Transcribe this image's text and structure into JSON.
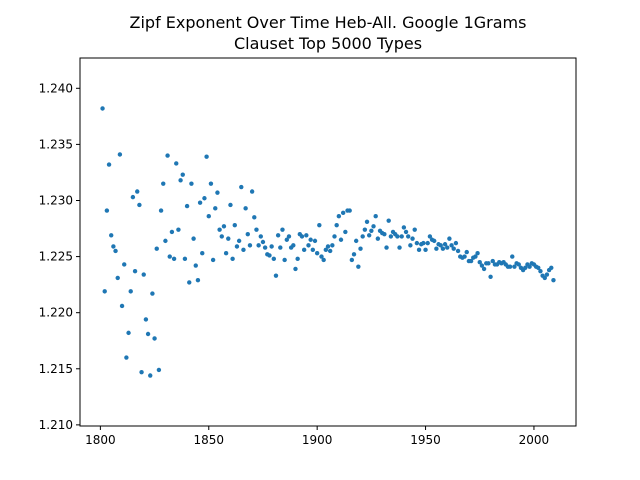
{
  "chart_data": {
    "type": "scatter",
    "title": "Zipf Exponent Over Time Heb-All. Google 1Grams",
    "subtitle": "Clauset Top 5000 Types",
    "x": [
      1801,
      1802,
      1803,
      1804,
      1805,
      1806,
      1807,
      1808,
      1809,
      1810,
      1811,
      1812,
      1813,
      1814,
      1815,
      1816,
      1817,
      1818,
      1819,
      1820,
      1821,
      1822,
      1823,
      1824,
      1825,
      1826,
      1827,
      1828,
      1829,
      1830,
      1831,
      1832,
      1833,
      1834,
      1835,
      1836,
      1837,
      1838,
      1839,
      1840,
      1841,
      1842,
      1843,
      1844,
      1845,
      1846,
      1847,
      1848,
      1849,
      1850,
      1851,
      1852,
      1853,
      1854,
      1855,
      1856,
      1857,
      1858,
      1859,
      1860,
      1861,
      1862,
      1863,
      1864,
      1865,
      1866,
      1867,
      1868,
      1869,
      1870,
      1871,
      1872,
      1873,
      1874,
      1875,
      1876,
      1877,
      1878,
      1879,
      1880,
      1881,
      1882,
      1883,
      1884,
      1885,
      1886,
      1887,
      1888,
      1889,
      1890,
      1891,
      1892,
      1893,
      1894,
      1895,
      1896,
      1897,
      1898,
      1899,
      1900,
      1901,
      1902,
      1903,
      1904,
      1905,
      1906,
      1907,
      1908,
      1909,
      1910,
      1911,
      1912,
      1913,
      1914,
      1915,
      1916,
      1917,
      1918,
      1919,
      1920,
      1921,
      1922,
      1923,
      1924,
      1925,
      1926,
      1927,
      1928,
      1929,
      1930,
      1931,
      1932,
      1933,
      1934,
      1935,
      1936,
      1937,
      1938,
      1939,
      1940,
      1941,
      1942,
      1943,
      1944,
      1945,
      1946,
      1947,
      1948,
      1949,
      1950,
      1951,
      1952,
      1953,
      1954,
      1955,
      1956,
      1957,
      1958,
      1959,
      1960,
      1961,
      1962,
      1963,
      1964,
      1965,
      1966,
      1967,
      1968,
      1969,
      1970,
      1971,
      1972,
      1973,
      1974,
      1975,
      1976,
      1977,
      1978,
      1979,
      1980,
      1981,
      1982,
      1983,
      1984,
      1985,
      1986,
      1987,
      1988,
      1989,
      1990,
      1991,
      1992,
      1993,
      1994,
      1995,
      1996,
      1997,
      1998,
      1999,
      2000,
      2001,
      2002,
      2003,
      2004,
      2005,
      2006,
      2007,
      2008,
      2009
    ],
    "series": [
      {
        "color": "#1f77b4",
        "values": [
          1.2382,
          1.2219,
          1.2291,
          1.2332,
          1.2269,
          1.2259,
          1.2255,
          1.2231,
          1.2341,
          1.2206,
          1.2243,
          1.216,
          1.2182,
          1.2219,
          1.2303,
          1.2237,
          1.2308,
          1.2296,
          1.2147,
          1.2234,
          1.2194,
          1.2181,
          1.2144,
          1.2217,
          1.2177,
          1.2257,
          1.2149,
          1.2291,
          1.2315,
          1.2264,
          1.234,
          1.225,
          1.2272,
          1.2248,
          1.2333,
          1.2274,
          1.2318,
          1.2323,
          1.2248,
          1.2295,
          1.2227,
          1.2315,
          1.2266,
          1.2242,
          1.2229,
          1.2298,
          1.2253,
          1.2302,
          1.2339,
          1.2286,
          1.2315,
          1.2247,
          1.2293,
          1.2307,
          1.2274,
          1.2268,
          1.2277,
          1.2253,
          1.2266,
          1.2296,
          1.2248,
          1.2278,
          1.2259,
          1.2264,
          1.2312,
          1.2256,
          1.2293,
          1.227,
          1.226,
          1.2308,
          1.2285,
          1.2274,
          1.226,
          1.2268,
          1.2263,
          1.2258,
          1.2252,
          1.2251,
          1.2259,
          1.2248,
          1.2233,
          1.2269,
          1.2258,
          1.2274,
          1.2247,
          1.2265,
          1.2268,
          1.2258,
          1.226,
          1.2239,
          1.2248,
          1.227,
          1.2268,
          1.2256,
          1.2269,
          1.226,
          1.2265,
          1.2256,
          1.2264,
          1.2253,
          1.2278,
          1.225,
          1.2247,
          1.2256,
          1.2259,
          1.2255,
          1.226,
          1.2268,
          1.2278,
          1.2286,
          1.2265,
          1.2289,
          1.2272,
          1.2291,
          1.2291,
          1.2247,
          1.2252,
          1.2264,
          1.2241,
          1.2257,
          1.2268,
          1.2274,
          1.2281,
          1.2269,
          1.2273,
          1.2277,
          1.2286,
          1.2266,
          1.2273,
          1.2271,
          1.227,
          1.2258,
          1.2282,
          1.2268,
          1.2272,
          1.227,
          1.2268,
          1.2258,
          1.2268,
          1.2276,
          1.2272,
          1.2268,
          1.226,
          1.2266,
          1.2274,
          1.2262,
          1.2256,
          1.2261,
          1.2262,
          1.2256,
          1.2262,
          1.2268,
          1.2265,
          1.2264,
          1.2257,
          1.2261,
          1.226,
          1.2257,
          1.2261,
          1.2258,
          1.2266,
          1.226,
          1.2257,
          1.2262,
          1.2255,
          1.225,
          1.2249,
          1.225,
          1.2254,
          1.2246,
          1.2246,
          1.2249,
          1.225,
          1.2253,
          1.2245,
          1.2242,
          1.2239,
          1.2244,
          1.2244,
          1.2232,
          1.2246,
          1.2243,
          1.2243,
          1.2245,
          1.2244,
          1.2245,
          1.2243,
          1.2241,
          1.2241,
          1.225,
          1.2241,
          1.2244,
          1.2243,
          1.224,
          1.2238,
          1.224,
          1.2243,
          1.2241,
          1.2244,
          1.2243,
          1.2241,
          1.224,
          1.2237,
          1.2233,
          1.2231,
          1.2234,
          1.2238,
          1.224,
          1.2229
        ]
      }
    ],
    "xlim": [
      1790.6,
      2019.4
    ],
    "xticks": [
      1800,
      1850,
      1900,
      1950,
      2000
    ],
    "ylim": [
      1.2099,
      1.2427
    ],
    "yticks": [
      {
        "value": 1.21,
        "label": "1.210"
      },
      {
        "value": 1.215,
        "label": "1.215"
      },
      {
        "value": 1.22,
        "label": "1.220"
      },
      {
        "value": 1.225,
        "label": "1.225"
      },
      {
        "value": 1.23,
        "label": "1.230"
      },
      {
        "value": 1.235,
        "label": "1.235"
      },
      {
        "value": 1.24,
        "label": "1.240"
      }
    ]
  }
}
